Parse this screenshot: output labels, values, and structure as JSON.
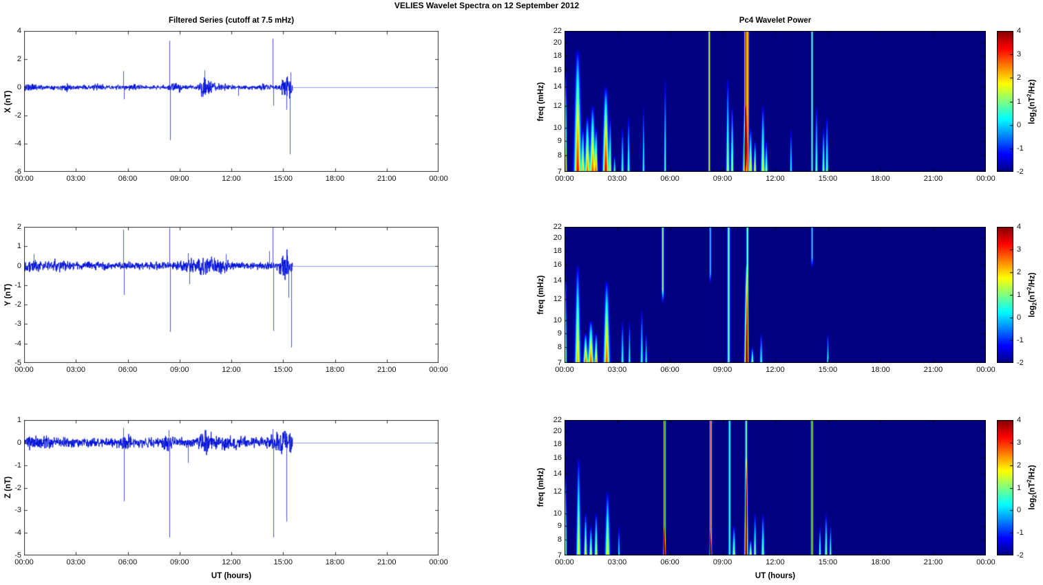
{
  "figure_title": "VELIES Wavelet Spectra on 12 September 2012",
  "left_column": {
    "title": "Filtered Series (cutoff at 7.5 mHz)",
    "xlabel": "UT (hours)",
    "x_tick_labels": [
      "00:00",
      "03:00",
      "06:00",
      "09:00",
      "12:00",
      "15:00",
      "18:00",
      "21:00",
      "00:00"
    ],
    "line_color": "#0010d8",
    "panels": [
      {
        "ylabel": "X (nT)",
        "y_tick_labels": [
          "4",
          "2",
          "0",
          "-2",
          "-4",
          "-6"
        ]
      },
      {
        "ylabel": "Y (nT)",
        "y_tick_labels": [
          "2",
          "1",
          "0",
          "-1",
          "-2",
          "-3",
          "-4",
          "-5"
        ]
      },
      {
        "ylabel": "Z (nT)",
        "y_tick_labels": [
          "1",
          "0",
          "-1",
          "-2",
          "-3",
          "-4",
          "-5"
        ]
      }
    ]
  },
  "right_column": {
    "title": "Pc4 Wavelet Power",
    "xlabel": "UT (hours)",
    "x_tick_labels": [
      "00:00",
      "03:00",
      "06:00",
      "09:00",
      "12:00",
      "15:00",
      "18:00",
      "21:00",
      "00:00"
    ],
    "ylabel": "freq (mHz)",
    "y_tick_labels": [
      "22",
      "20",
      "18",
      "16",
      "14",
      "12",
      "10",
      "9",
      "8",
      "7"
    ],
    "colorbar": {
      "tick_labels": [
        "4",
        "3",
        "2",
        "1",
        "0",
        "-1",
        "-2"
      ],
      "label_parts": [
        "log",
        "2",
        "(nT",
        "2",
        "/Hz)"
      ],
      "clim": [
        -2,
        4
      ],
      "colormap": "jet",
      "background_color": "#000080"
    }
  },
  "chart_data": [
    {
      "type": "line",
      "panel": "X",
      "title": "Filtered Series (cutoff at 7.5 mHz)",
      "ylabel": "X (nT)",
      "ylim": [
        -6,
        4
      ],
      "x_range_hours": [
        0,
        24
      ],
      "data_end_hour": 15.55,
      "seed": 11,
      "noise_base_nT": 0.07,
      "noise_bursts": [
        {
          "t": 0.2,
          "a": 0.1,
          "w": 0.15
        },
        {
          "t": 0.6,
          "a": 0.08,
          "w": 0.2
        },
        {
          "t": 2.5,
          "a": 0.06,
          "w": 0.25
        },
        {
          "t": 4.3,
          "a": 0.07,
          "w": 0.15
        },
        {
          "t": 6.3,
          "a": 0.05,
          "w": 0.2
        },
        {
          "t": 8.8,
          "a": 0.1,
          "w": 0.25
        },
        {
          "t": 10.35,
          "a": 0.28,
          "w": 0.12
        },
        {
          "t": 10.7,
          "a": 0.15,
          "w": 0.25
        },
        {
          "t": 11.6,
          "a": 0.06,
          "w": 0.3
        },
        {
          "t": 13.9,
          "a": 0.08,
          "w": 0.2
        },
        {
          "t": 15.05,
          "a": 0.4,
          "w": 0.1
        },
        {
          "t": 15.35,
          "a": 0.5,
          "w": 0.12
        }
      ],
      "spikes": [
        {
          "t": 5.75,
          "v": 1.15
        },
        {
          "t": 5.8,
          "v": -0.85
        },
        {
          "t": 8.4,
          "v": 3.3
        },
        {
          "t": 8.44,
          "v": -3.75
        },
        {
          "t": 10.45,
          "v": 1.2
        },
        {
          "t": 12.4,
          "v": -0.6
        },
        {
          "t": 14.4,
          "v": 3.45
        },
        {
          "t": 14.45,
          "v": -1.3
        },
        {
          "t": 15.2,
          "v": -1.6
        },
        {
          "t": 15.37,
          "v": -4.75
        },
        {
          "t": 15.42,
          "v": 1.05
        }
      ]
    },
    {
      "type": "line",
      "panel": "Y",
      "ylabel": "Y (nT)",
      "ylim": [
        -5,
        2
      ],
      "x_range_hours": [
        0,
        24
      ],
      "data_end_hour": 15.55,
      "seed": 22,
      "noise_base_nT": 0.09,
      "noise_bursts": [
        {
          "t": 0.5,
          "a": 0.08,
          "w": 0.3
        },
        {
          "t": 2.0,
          "a": 0.05,
          "w": 0.5
        },
        {
          "t": 9.6,
          "a": 0.1,
          "w": 0.3
        },
        {
          "t": 10.5,
          "a": 0.15,
          "w": 0.35
        },
        {
          "t": 11.5,
          "a": 0.08,
          "w": 0.4
        },
        {
          "t": 15.15,
          "a": 0.25,
          "w": 0.25
        }
      ],
      "spikes": [
        {
          "t": 0.55,
          "v": 0.6
        },
        {
          "t": 5.75,
          "v": 1.85
        },
        {
          "t": 5.8,
          "v": -1.5
        },
        {
          "t": 8.4,
          "v": 1.95
        },
        {
          "t": 8.44,
          "v": -3.4
        },
        {
          "t": 9.5,
          "v": 0.65
        },
        {
          "t": 9.55,
          "v": -0.95
        },
        {
          "t": 11.7,
          "v": 0.6
        },
        {
          "t": 14.2,
          "v": 0.75
        },
        {
          "t": 14.4,
          "v": 2.0
        },
        {
          "t": 14.45,
          "v": -3.35
        },
        {
          "t": 15.3,
          "v": -1.65
        },
        {
          "t": 15.45,
          "v": -4.2
        }
      ]
    },
    {
      "type": "line",
      "panel": "Z",
      "ylabel": "Z (nT)",
      "ylim": [
        -5,
        1
      ],
      "x_range_hours": [
        0,
        24
      ],
      "data_end_hour": 15.55,
      "seed": 33,
      "noise_base_nT": 0.1,
      "noise_bursts": [
        {
          "t": 0.9,
          "a": 0.07,
          "w": 0.4
        },
        {
          "t": 5.9,
          "a": 0.08,
          "w": 0.2
        },
        {
          "t": 8.4,
          "a": 0.08,
          "w": 0.2
        },
        {
          "t": 10.5,
          "a": 0.18,
          "w": 0.3
        },
        {
          "t": 12.0,
          "a": 0.05,
          "w": 0.5
        },
        {
          "t": 14.4,
          "a": 0.1,
          "w": 0.15
        },
        {
          "t": 15.1,
          "a": 0.2,
          "w": 0.3
        }
      ],
      "spikes": [
        {
          "t": 5.75,
          "v": 0.65
        },
        {
          "t": 5.8,
          "v": -2.6
        },
        {
          "t": 8.38,
          "v": 0.55
        },
        {
          "t": 8.4,
          "v": -4.2
        },
        {
          "t": 9.5,
          "v": -0.9
        },
        {
          "t": 10.45,
          "v": 0.55
        },
        {
          "t": 14.4,
          "v": 0.6
        },
        {
          "t": 14.45,
          "v": -4.2
        },
        {
          "t": 15.2,
          "v": -3.5
        }
      ]
    },
    {
      "type": "heatmap",
      "panel": "X",
      "title": "Pc4 Wavelet Power",
      "ylabel": "freq (mHz)",
      "freq_lim_mHz": [
        7,
        22
      ],
      "clim_log2": [
        -2,
        4
      ],
      "background_log2": -2,
      "events": [
        {
          "t": 0.06,
          "w": 0.05,
          "f2": 16,
          "p": 2.6
        },
        {
          "t": 0.75,
          "w": 0.13,
          "f2": 19,
          "p": 3.3
        },
        {
          "t": 1.05,
          "w": 0.06,
          "f2": 10,
          "p": 2.0
        },
        {
          "t": 1.3,
          "w": 0.09,
          "f2": 11,
          "p": 2.7
        },
        {
          "t": 1.6,
          "w": 0.1,
          "f2": 12,
          "p": 2.9
        },
        {
          "t": 1.8,
          "w": 0.06,
          "f2": 10,
          "p": 2.3
        },
        {
          "t": 2.35,
          "w": 0.11,
          "f2": 14,
          "p": 3.6
        },
        {
          "t": 2.6,
          "w": 0.05,
          "f2": 11,
          "p": 1.4
        },
        {
          "t": 2.85,
          "w": 0.04,
          "f2": 8,
          "p": 1.2
        },
        {
          "t": 3.3,
          "w": 0.05,
          "f2": 10,
          "p": 1.0
        },
        {
          "t": 3.65,
          "w": 0.05,
          "f2": 11,
          "p": 1.1
        },
        {
          "t": 4.5,
          "w": 0.04,
          "f2": 12,
          "p": 0.9
        },
        {
          "t": 5.73,
          "w": 0.04,
          "f2": 15,
          "p": 1.1
        },
        {
          "t": 8.25,
          "w": 0.03,
          "f2": 22,
          "p": 2.0,
          "line": true
        },
        {
          "t": 9.3,
          "w": 0.06,
          "f2": 15,
          "p": 1.6
        },
        {
          "t": 9.55,
          "w": 0.05,
          "f2": 12,
          "p": 1.9
        },
        {
          "t": 10.33,
          "w": 0.05,
          "f1": 7.5,
          "f2": 22,
          "p": 3.8,
          "line": true
        },
        {
          "t": 10.3,
          "w": 0.09,
          "f2": 12,
          "p": 3.0
        },
        {
          "t": 10.45,
          "w": 0.03,
          "f2": 22,
          "p": 2.4,
          "line": true
        },
        {
          "t": 10.6,
          "w": 0.06,
          "f2": 10,
          "p": 2.2
        },
        {
          "t": 10.85,
          "w": 0.05,
          "f2": 9,
          "p": 2.0
        },
        {
          "t": 11.3,
          "w": 0.07,
          "f2": 12,
          "p": 1.9
        },
        {
          "t": 11.5,
          "w": 0.05,
          "f2": 9,
          "p": 1.5
        },
        {
          "t": 12.9,
          "w": 0.04,
          "f2": 10,
          "p": 0.8
        },
        {
          "t": 14.1,
          "w": 0.03,
          "f2": 22,
          "p": 2.0,
          "line": true
        },
        {
          "t": 14.35,
          "w": 0.05,
          "f2": 12,
          "p": 1.2
        },
        {
          "t": 14.75,
          "w": 0.05,
          "f2": 10,
          "p": 1.4
        },
        {
          "t": 14.95,
          "w": 0.05,
          "f2": 11,
          "p": 1.3
        }
      ]
    },
    {
      "type": "heatmap",
      "panel": "Y",
      "ylabel": "freq (mHz)",
      "freq_lim_mHz": [
        7,
        22
      ],
      "clim_log2": [
        -2,
        4
      ],
      "background_log2": -2,
      "events": [
        {
          "t": 0.06,
          "w": 0.04,
          "f2": 15,
          "p": 2.0
        },
        {
          "t": 0.75,
          "w": 0.1,
          "f2": 16,
          "p": 2.3
        },
        {
          "t": 1.2,
          "w": 0.08,
          "f2": 9,
          "p": 2.9
        },
        {
          "t": 1.5,
          "w": 0.1,
          "f2": 10,
          "p": 3.0
        },
        {
          "t": 1.8,
          "w": 0.06,
          "f2": 9,
          "p": 2.6
        },
        {
          "t": 2.4,
          "w": 0.11,
          "f2": 14,
          "p": 2.9
        },
        {
          "t": 3.3,
          "w": 0.05,
          "f2": 10,
          "p": 0.9
        },
        {
          "t": 3.7,
          "w": 0.04,
          "f2": 10,
          "p": 0.8
        },
        {
          "t": 4.4,
          "w": 0.05,
          "f2": 11,
          "p": 0.9
        },
        {
          "t": 4.65,
          "w": 0.04,
          "f2": 9,
          "p": 0.8
        },
        {
          "t": 5.6,
          "w": 0.04,
          "f1": 12,
          "f2": 22,
          "p": 1.4,
          "line": true
        },
        {
          "t": 8.3,
          "w": 0.03,
          "f1": 14,
          "f2": 22,
          "p": 0.7,
          "line": true
        },
        {
          "t": 9.35,
          "w": 0.05,
          "f2": 22,
          "p": 1.0,
          "line": true
        },
        {
          "t": 10.35,
          "w": 0.07,
          "f2": 16,
          "p": 3.1
        },
        {
          "t": 10.42,
          "w": 0.04,
          "f2": 22,
          "p": 1.5,
          "line": true
        },
        {
          "t": 10.7,
          "w": 0.05,
          "f2": 8,
          "p": 1.6
        },
        {
          "t": 11.2,
          "w": 0.05,
          "f2": 9,
          "p": 0.9
        },
        {
          "t": 14.1,
          "w": 0.03,
          "f1": 16,
          "f2": 22,
          "p": 0.9,
          "line": true
        },
        {
          "t": 15.0,
          "w": 0.04,
          "f2": 9,
          "p": 0.8
        }
      ]
    },
    {
      "type": "heatmap",
      "panel": "Z",
      "ylabel": "freq (mHz)",
      "freq_lim_mHz": [
        7,
        22
      ],
      "clim_log2": [
        -2,
        4
      ],
      "background_log2": -2,
      "events": [
        {
          "t": 0.06,
          "w": 0.04,
          "f2": 14,
          "p": 2.1
        },
        {
          "t": 0.8,
          "w": 0.08,
          "f2": 16,
          "p": 1.9
        },
        {
          "t": 1.2,
          "w": 0.06,
          "f2": 10,
          "p": 1.9
        },
        {
          "t": 1.5,
          "w": 0.06,
          "f2": 9,
          "p": 1.7
        },
        {
          "t": 1.8,
          "w": 0.06,
          "f2": 10,
          "p": 1.9
        },
        {
          "t": 2.45,
          "w": 0.09,
          "f2": 12,
          "p": 1.9
        },
        {
          "t": 3.1,
          "w": 0.04,
          "f2": 9,
          "p": 0.6
        },
        {
          "t": 5.7,
          "w": 0.035,
          "f2": 22,
          "p": 3.5,
          "line": true
        },
        {
          "t": 5.7,
          "w": 0.05,
          "f2": 9,
          "p": 2.2
        },
        {
          "t": 8.33,
          "w": 0.035,
          "f2": 22,
          "p": 3.5,
          "line": true
        },
        {
          "t": 8.33,
          "w": 0.05,
          "f2": 9,
          "p": 2.4
        },
        {
          "t": 9.4,
          "w": 0.04,
          "f2": 22,
          "p": 0.9,
          "line": true
        },
        {
          "t": 9.65,
          "w": 0.06,
          "f2": 9,
          "p": 1.6
        },
        {
          "t": 10.35,
          "w": 0.07,
          "f2": 16,
          "p": 2.7
        },
        {
          "t": 10.35,
          "w": 0.04,
          "f2": 22,
          "p": 1.4,
          "line": true
        },
        {
          "t": 10.6,
          "w": 0.05,
          "f2": 8,
          "p": 2.0
        },
        {
          "t": 10.85,
          "w": 0.05,
          "f2": 10,
          "p": 1.4
        },
        {
          "t": 11.3,
          "w": 0.06,
          "f2": 10,
          "p": 1.3
        },
        {
          "t": 14.1,
          "w": 0.035,
          "f2": 22,
          "p": 3.5,
          "line": true
        },
        {
          "t": 14.55,
          "w": 0.04,
          "f2": 9,
          "p": 1.4
        },
        {
          "t": 14.9,
          "w": 0.05,
          "f2": 10,
          "p": 1.5
        },
        {
          "t": 15.15,
          "w": 0.04,
          "f2": 9,
          "p": 1.2
        }
      ]
    }
  ]
}
